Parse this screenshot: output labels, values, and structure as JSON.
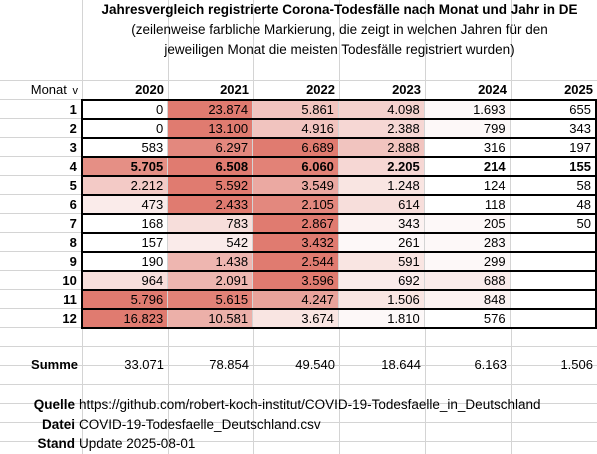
{
  "title": "Jahresvergleich registrierte Corona-Todesfälle nach Monat und Jahr in DE",
  "subtitle_line1": "(zeilenweise farbliche Markierung, die zeigt in welchen Jahren für den",
  "subtitle_line2": "jeweiligen Monat die meisten Todesfälle registriert wurden)",
  "header": {
    "first": "Monat",
    "filter_icon": "dropdown-filter-icon",
    "years": [
      "2020",
      "2021",
      "2022",
      "2023",
      "2024",
      "2025"
    ]
  },
  "rows": [
    {
      "month": "1",
      "values": [
        "0",
        "23.874",
        "5.861",
        "4.098",
        "1.693",
        "655"
      ],
      "shade": [
        0,
        1.0,
        0.45,
        0.35,
        0.05,
        0.0
      ],
      "bold": false
    },
    {
      "month": "2",
      "values": [
        "0",
        "13.100",
        "4.916",
        "2.388",
        "799",
        "343"
      ],
      "shade": [
        0,
        1.0,
        0.45,
        0.3,
        0.05,
        0.0
      ],
      "bold": false
    },
    {
      "month": "3",
      "values": [
        "583",
        "6.297",
        "6.689",
        "2.888",
        "316",
        "197"
      ],
      "shade": [
        0.0,
        0.9,
        1.0,
        0.45,
        0.0,
        0.0
      ],
      "bold": false
    },
    {
      "month": "4",
      "values": [
        "5.705",
        "6.508",
        "6.060",
        "2.205",
        "214",
        "155"
      ],
      "shade": [
        0.85,
        1.0,
        0.95,
        0.3,
        0.0,
        0.0
      ],
      "bold": true
    },
    {
      "month": "5",
      "values": [
        "2.212",
        "5.592",
        "3.549",
        "1.248",
        "124",
        "58"
      ],
      "shade": [
        0.4,
        1.0,
        0.65,
        0.2,
        0.0,
        0.0
      ],
      "bold": false
    },
    {
      "month": "6",
      "values": [
        "473",
        "2.433",
        "2.105",
        "614",
        "118",
        "48"
      ],
      "shade": [
        0.15,
        1.0,
        0.9,
        0.25,
        0.0,
        0.0
      ],
      "bold": false
    },
    {
      "month": "7",
      "values": [
        "168",
        "783",
        "2.867",
        "343",
        "205",
        "50"
      ],
      "shade": [
        0.0,
        0.25,
        1.0,
        0.1,
        0.05,
        0.0
      ],
      "bold": false
    },
    {
      "month": "8",
      "values": [
        "157",
        "542",
        "3.432",
        "261",
        "283",
        ""
      ],
      "shade": [
        0.0,
        0.15,
        1.0,
        0.05,
        0.05,
        0.0
      ],
      "bold": false
    },
    {
      "month": "9",
      "values": [
        "190",
        "1.438",
        "2.544",
        "591",
        "299",
        ""
      ],
      "shade": [
        0.0,
        0.55,
        1.0,
        0.2,
        0.05,
        0.0
      ],
      "bold": false
    },
    {
      "month": "10",
      "values": [
        "964",
        "2.091",
        "3.596",
        "692",
        "688",
        ""
      ],
      "shade": [
        0.25,
        0.55,
        1.0,
        0.15,
        0.15,
        0.0
      ],
      "bold": false
    },
    {
      "month": "11",
      "values": [
        "5.796",
        "5.615",
        "4.247",
        "1.506",
        "848",
        ""
      ],
      "shade": [
        1.0,
        0.95,
        0.7,
        0.2,
        0.1,
        0.0
      ],
      "bold": false
    },
    {
      "month": "12",
      "values": [
        "16.823",
        "10.581",
        "3.674",
        "1.810",
        "576",
        ""
      ],
      "shade": [
        1.0,
        0.6,
        0.2,
        0.05,
        0.0,
        0.0
      ],
      "bold": false
    }
  ],
  "sum": {
    "label": "Summe",
    "values": [
      "33.071",
      "78.854",
      "49.540",
      "18.644",
      "6.163",
      "1.506"
    ]
  },
  "info": {
    "quelle_label": "Quelle",
    "quelle_value": "https://github.com/robert-koch-institut/COVID-19-Todesfaelle_in_Deutschland",
    "datei_label": "Datei",
    "datei_value": "COVID-19-Todesfaelle_Deutschland.csv",
    "stand_label": "Stand",
    "stand_value": "Update 2025-08-01"
  },
  "colors": {
    "max_shade": "#e07b70",
    "min_shade": "#ffffff",
    "border": "#000000",
    "grid": "#d4d4d4"
  }
}
